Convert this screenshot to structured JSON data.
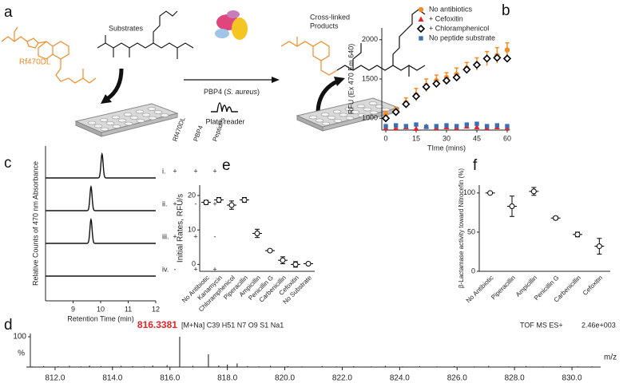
{
  "schematic": {
    "label": "a",
    "rf_label": "Rf470DL",
    "substrates": "Substrates",
    "products": [
      "Cross-linked",
      "Products"
    ],
    "enzyme": [
      "PBP4 (",
      "S. aureus",
      ")"
    ],
    "reader": "Plate reader"
  },
  "chart_data": [
    {
      "type": "scatter",
      "label": "b",
      "xlabel": "TIme (mins)",
      "ylabel": "RFU (Ex 470 Em 640)",
      "xlim": [
        0,
        60
      ],
      "ylim": [
        850,
        2150
      ],
      "xticks": [
        0,
        15,
        30,
        45,
        60
      ],
      "yticks": [
        1000,
        1500,
        2000
      ],
      "x": [
        0,
        5,
        10,
        15,
        20,
        25,
        30,
        35,
        40,
        45,
        50,
        55,
        60
      ],
      "series": [
        {
          "name": "No antibiotics",
          "color": "#f28c28",
          "marker": "circle",
          "values": [
            1050,
            1100,
            1200,
            1300,
            1420,
            1480,
            1520,
            1560,
            1640,
            1690,
            1760,
            1800,
            1870
          ],
          "errors": [
            40,
            40,
            60,
            80,
            80,
            70,
            60,
            80,
            70,
            80,
            90,
            100,
            90
          ]
        },
        {
          "name": "+ Cefoxitin",
          "color": "#e8232a",
          "marker": "triangle",
          "values": [
            880,
            880,
            890,
            870,
            900,
            880,
            890,
            880,
            900,
            890,
            880,
            890,
            880
          ]
        },
        {
          "name": "+ Chloramphenicol",
          "color": "#000000",
          "marker": "diamond",
          "values": [
            1000,
            1080,
            1180,
            1280,
            1400,
            1440,
            1480,
            1520,
            1620,
            1680,
            1760,
            1770,
            1760
          ]
        },
        {
          "name": "No peptide substrate",
          "color": "#3a6fb5",
          "marker": "square",
          "values": [
            900,
            910,
            900,
            920,
            890,
            900,
            910,
            900,
            920,
            930,
            900,
            910,
            900
          ]
        }
      ]
    },
    {
      "type": "chromatogram",
      "label": "c",
      "xlabel": "Retention Time (min)",
      "ylabel": "Relative Counts of 470 nm Absorbance",
      "xlim": [
        8,
        12
      ],
      "xticks": [
        9,
        10,
        11,
        12
      ],
      "conditions": [
        "Rf470DL",
        "PBP4",
        "Peptides"
      ],
      "traces": [
        {
          "name": "i.",
          "peak_x": 10.05,
          "peak_height": 1,
          "presence": [
            "+",
            "+",
            "+"
          ]
        },
        {
          "name": "ii.",
          "peak_x": 9.65,
          "peak_height": 1,
          "presence": [
            "+",
            "-",
            "+"
          ]
        },
        {
          "name": "iii.",
          "peak_x": 9.65,
          "peak_height": 1,
          "presence": [
            "+",
            "+",
            "-"
          ]
        },
        {
          "name": "iv.",
          "peak_height": 0,
          "presence": [
            "-",
            "+",
            "+"
          ]
        }
      ]
    },
    {
      "type": "dot",
      "label": "e",
      "ylabel": "Initial Rates, RFU/s",
      "categories": [
        "No Antibiotic",
        "Kanamycin",
        "Chloramphenicol",
        "Piperacillin",
        "Ampicillin",
        "Penicillin G",
        "Carbenicillin",
        "Cefoxitin",
        "No Substrate"
      ],
      "values": [
        18,
        18.7,
        17.2,
        18.7,
        9,
        4,
        1.2,
        0,
        0.2
      ],
      "errors": [
        0.6,
        0.7,
        1.2,
        0.7,
        1.2,
        0.4,
        1,
        0.8,
        0.3
      ],
      "ylim": [
        -2,
        23
      ],
      "yticks": [
        0,
        10,
        20
      ],
      "color": "#000000"
    },
    {
      "type": "dot",
      "label": "f",
      "ylabel": "β-Lactamase activity toward Nitrocefin (%)",
      "categories": [
        "No Antibiotic",
        "Piperacillin",
        "Ampicillin",
        "Penicillin G",
        "Carbenicillin",
        "Cefoxitin"
      ],
      "values": [
        100,
        83,
        102,
        68,
        47,
        32
      ],
      "errors": [
        0.5,
        13,
        5,
        2,
        3,
        10
      ],
      "ylim": [
        0,
        110
      ],
      "yticks": [
        0,
        50,
        100
      ],
      "color": "#000000"
    },
    {
      "type": "spectrum",
      "label": "d",
      "ylabel": "%",
      "annotation": "816.3381",
      "annotation_color": "#e8232a",
      "formula": "[M+Na] C39 H51 N7 O9 S1 Na1",
      "mode": "TOF MS ES+",
      "intensity": "2.46e+003",
      "xlabel": "m/z",
      "x": [
        811.2,
        811.6,
        812.1,
        812.5,
        812.9,
        813.2,
        813.6,
        814.0,
        814.3,
        814.7,
        815.1,
        815.4,
        815.9,
        816.34,
        816.8,
        817.34,
        817.7,
        818.0,
        818.34,
        818.7,
        819.1,
        819.5,
        820.1,
        820.6,
        821.3,
        821.8,
        822.4,
        823.0,
        823.5,
        824.1,
        824.7,
        825.3,
        825.9,
        826.6,
        827.1,
        827.8,
        828.4,
        829.0,
        829.6,
        830.2,
        830.7
      ],
      "values": [
        2,
        3,
        2,
        4,
        2,
        5,
        3,
        2,
        4,
        3,
        2,
        5,
        6,
        100,
        4,
        42,
        5,
        8,
        12,
        3,
        2,
        4,
        3,
        2,
        3,
        2,
        3,
        2,
        4,
        2,
        3,
        2,
        3,
        2,
        4,
        2,
        3,
        2,
        3,
        2,
        2
      ],
      "xlim": [
        811,
        831
      ],
      "xticks": [
        {
          "value": 812,
          "label": "812.0"
        },
        {
          "value": 814,
          "label": "814.0"
        },
        {
          "value": 816,
          "label": "816.0"
        },
        {
          "value": 818,
          "label": "818.0"
        },
        {
          "value": 820,
          "label": "820.0"
        },
        {
          "value": 822,
          "label": "822.0"
        },
        {
          "value": 824,
          "label": "824.0"
        },
        {
          "value": 826,
          "label": "826.0"
        },
        {
          "value": 828,
          "label": "828.0"
        },
        {
          "value": 830,
          "label": "830.0"
        }
      ],
      "ylim": [
        0,
        100
      ],
      "yticks": [
        100
      ]
    }
  ]
}
